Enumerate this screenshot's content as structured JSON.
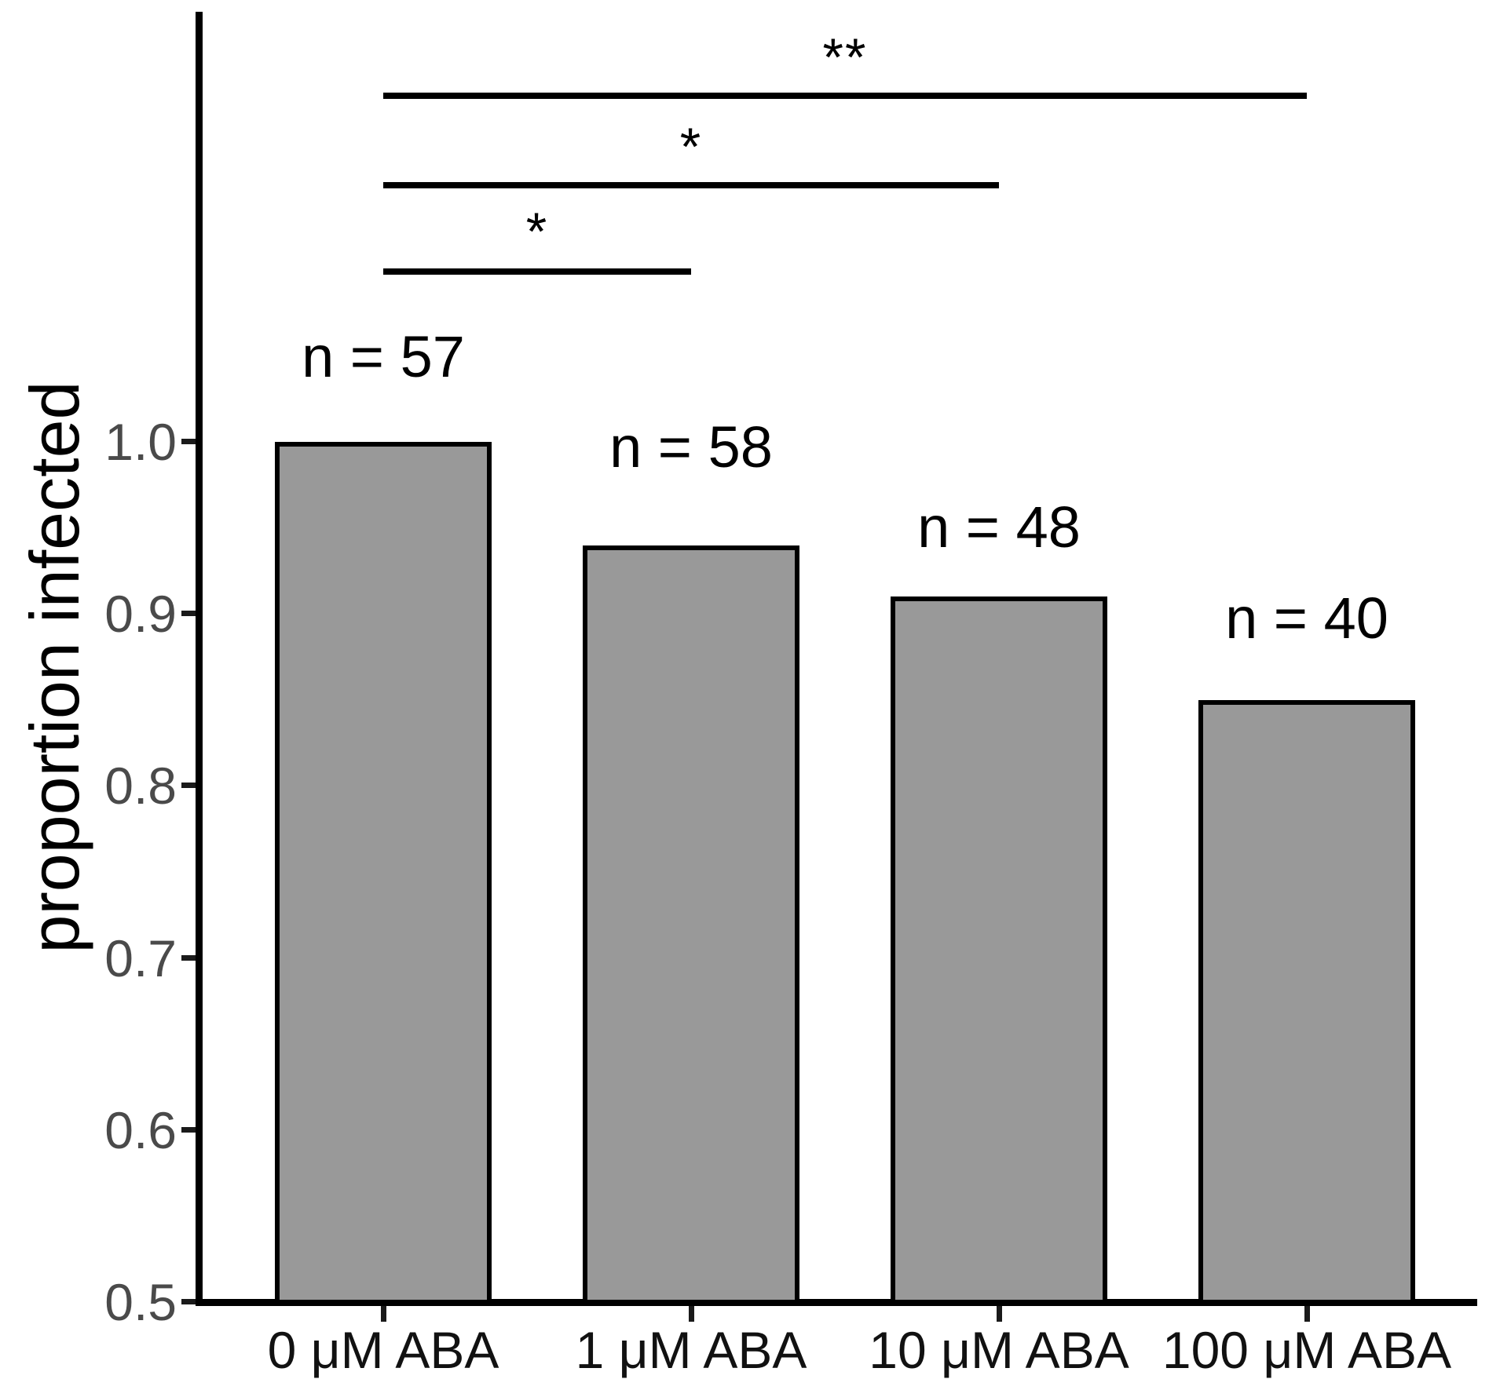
{
  "chart_data": {
    "type": "bar",
    "title": "",
    "xlabel": "",
    "ylabel": "proportion infected",
    "categories": [
      "0 μM ABA",
      "1 μM ABA",
      "10 μM ABA",
      "100 μM ABA"
    ],
    "values": [
      1.0,
      0.94,
      0.91,
      0.85
    ],
    "bar_labels": [
      "n = 57",
      "n = 58",
      "n = 48",
      "n = 40"
    ],
    "ylim": [
      0.5,
      1.0
    ],
    "yticks": [
      1.0,
      0.9,
      0.8,
      0.7,
      0.6,
      0.5
    ],
    "ytick_labels": [
      "1.0",
      "0.9",
      "0.8",
      "0.7",
      "0.6",
      "0.5"
    ],
    "grid": false,
    "legend": null,
    "bar_fill_color": "#999999",
    "bar_border_color": "#000000",
    "significance": [
      {
        "from": 0,
        "to": 1,
        "label": "*"
      },
      {
        "from": 0,
        "to": 2,
        "label": "*"
      },
      {
        "from": 0,
        "to": 3,
        "label": "**"
      }
    ]
  }
}
